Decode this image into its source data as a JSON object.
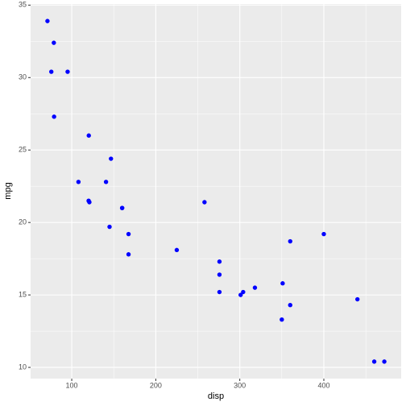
{
  "chart_data": {
    "type": "scatter",
    "x_label": "disp",
    "y_label": "mpg",
    "color": "#0000ff",
    "x": [
      160,
      160,
      108,
      258,
      360,
      225,
      360,
      146.7,
      140.8,
      167.6,
      167.6,
      275.8,
      275.8,
      275.8,
      472,
      460,
      440,
      78.7,
      75.7,
      71.1,
      120.1,
      318,
      304,
      350,
      400,
      79,
      120.3,
      95.1,
      351,
      145,
      301,
      121
    ],
    "y": [
      21.0,
      21.0,
      22.8,
      21.4,
      18.7,
      18.1,
      14.3,
      24.4,
      22.8,
      19.2,
      17.8,
      16.4,
      17.3,
      15.2,
      10.4,
      10.4,
      14.7,
      32.4,
      30.4,
      33.9,
      21.5,
      15.5,
      15.2,
      13.3,
      19.2,
      27.3,
      26.0,
      30.4,
      15.8,
      19.7,
      15.0,
      21.4
    ],
    "xlim": [
      51.055,
      492.045
    ],
    "ylim": [
      9.225,
      35.075
    ],
    "xticks": [
      100,
      200,
      300,
      400
    ],
    "yticks": [
      10,
      15,
      20,
      25,
      30,
      35
    ],
    "x_minor_ticks": [
      50,
      150,
      250,
      350,
      450
    ],
    "y_minor_ticks": [
      12.5,
      17.5,
      22.5,
      27.5,
      32.5
    ],
    "grid": true
  }
}
